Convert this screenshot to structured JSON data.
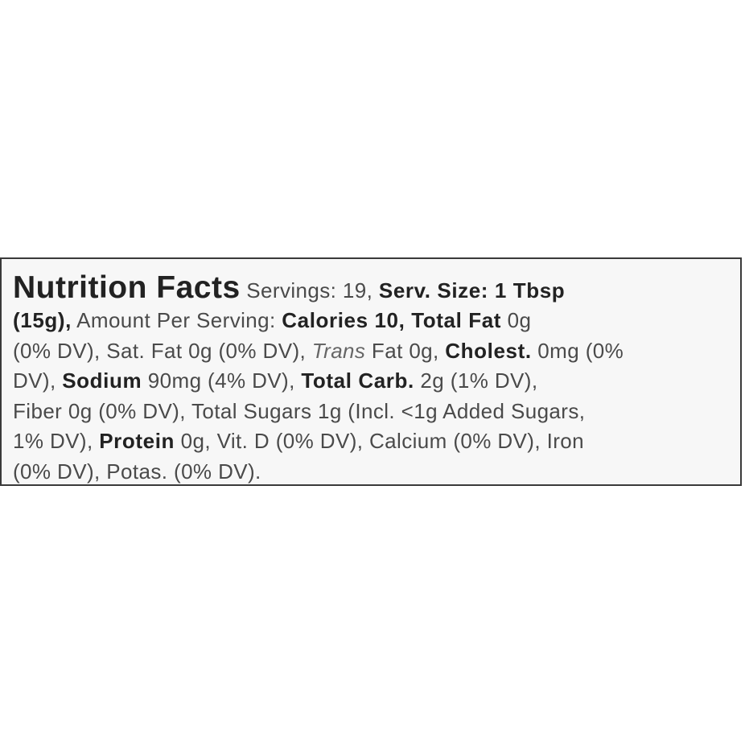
{
  "label": {
    "lines": [
      {
        "runs": [
          {
            "text": "Nutrition Facts",
            "style": "title"
          },
          {
            "text": " Servings: 19, ",
            "style": "regular"
          },
          {
            "text": "Serv. Size: 1 Tbsp",
            "style": "bold"
          }
        ]
      },
      {
        "runs": [
          {
            "text": "(15g),",
            "style": "bold"
          },
          {
            "text": " Amount Per Serving: ",
            "style": "regular"
          },
          {
            "text": "Calories 10, Total Fat",
            "style": "bold"
          },
          {
            "text": " 0g",
            "style": "regular"
          }
        ]
      },
      {
        "runs": [
          {
            "text": "(0% DV), Sat. Fat 0g (0% DV), ",
            "style": "regular"
          },
          {
            "text": "Trans",
            "style": "italic"
          },
          {
            "text": " Fat 0g, ",
            "style": "regular"
          },
          {
            "text": "Cholest.",
            "style": "bold"
          },
          {
            "text": " 0mg (0%",
            "style": "regular"
          }
        ]
      },
      {
        "runs": [
          {
            "text": "DV), ",
            "style": "regular"
          },
          {
            "text": "Sodium",
            "style": "bold"
          },
          {
            "text": " 90mg (4% DV), ",
            "style": "regular"
          },
          {
            "text": "Total Carb.",
            "style": "bold"
          },
          {
            "text": " 2g (1% DV),",
            "style": "regular"
          }
        ]
      },
      {
        "runs": [
          {
            "text": "Fiber 0g (0% DV), Total Sugars 1g (Incl. <1g Added Sugars,",
            "style": "regular"
          }
        ]
      },
      {
        "runs": [
          {
            "text": "1% DV), ",
            "style": "regular"
          },
          {
            "text": "Protein",
            "style": "bold"
          },
          {
            "text": " 0g, Vit. D (0% DV), Calcium (0% DV), Iron",
            "style": "regular"
          }
        ]
      },
      {
        "runs": [
          {
            "text": "(0% DV), Potas. (0% DV).",
            "style": "regular"
          }
        ]
      }
    ]
  }
}
